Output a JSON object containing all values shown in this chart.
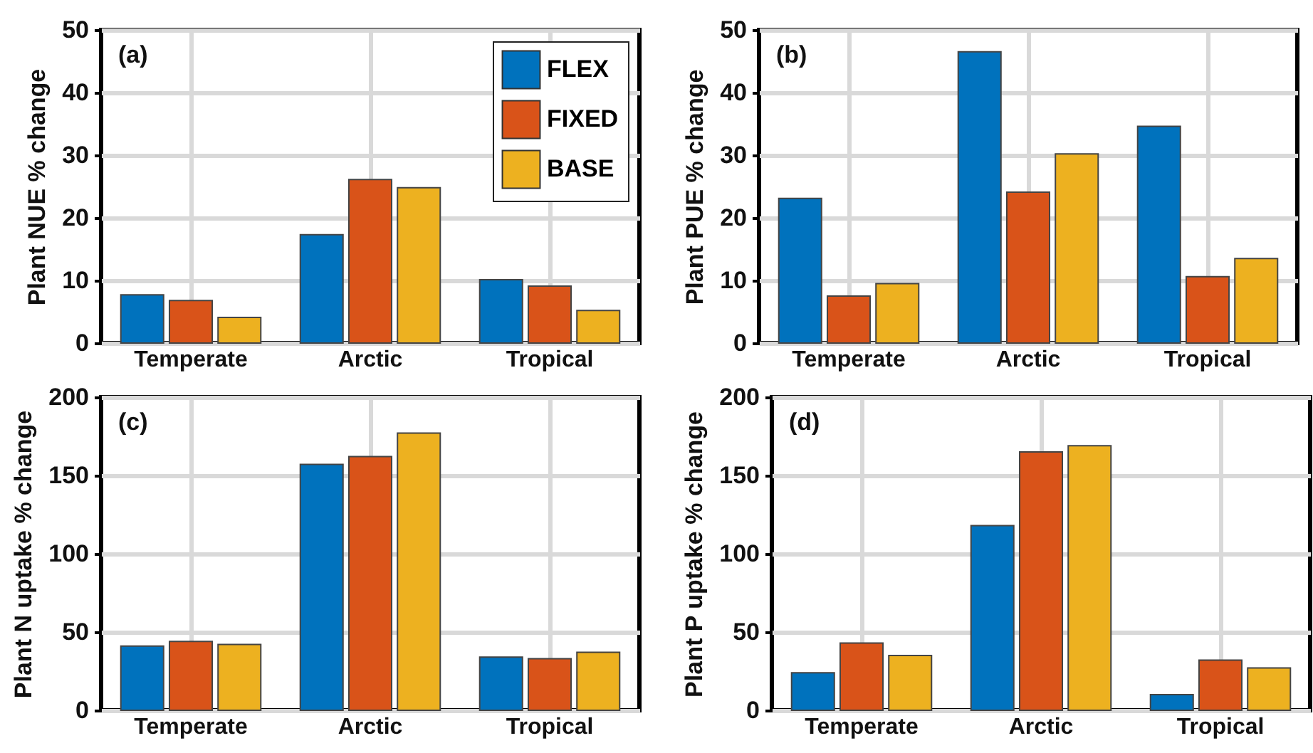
{
  "chart_data": [
    {
      "type": "bar",
      "annotations": [
        "(a)"
      ],
      "ylabel": "Plant NUE % change",
      "categories": [
        "Temperate",
        "Arctic",
        "Tropical"
      ],
      "series": [
        {
          "name": "FLEX",
          "color": "#0072bd",
          "values": [
            7.7,
            17.3,
            10.1
          ]
        },
        {
          "name": "FIXED",
          "color": "#d95319",
          "values": [
            6.8,
            26.1,
            9.1
          ]
        },
        {
          "name": "BASE",
          "color": "#edb120",
          "values": [
            4.1,
            24.8,
            5.2
          ]
        }
      ],
      "ylim": [
        0,
        50
      ],
      "yticks": [
        0,
        10,
        20,
        30,
        40,
        50
      ],
      "grid": true,
      "legend": "top right"
    },
    {
      "type": "bar",
      "annotations": [
        "(b)"
      ],
      "ylabel": "Plant PUE % change",
      "categories": [
        "Temperate",
        "Arctic",
        "Tropical"
      ],
      "series": [
        {
          "color": "#0072bd",
          "values": [
            23.1,
            46.5,
            34.6
          ]
        },
        {
          "color": "#d95319",
          "values": [
            7.5,
            24.1,
            10.6
          ]
        },
        {
          "color": "#edb120",
          "values": [
            9.5,
            30.2,
            13.5
          ]
        }
      ],
      "ylim": [
        0,
        50
      ],
      "yticks": [
        0,
        10,
        20,
        30,
        40,
        50
      ],
      "grid": true
    },
    {
      "type": "bar",
      "annotations": [
        "(c)"
      ],
      "ylabel": "Plant N uptake % change",
      "categories": [
        "Temperate",
        "Arctic",
        "Tropical"
      ],
      "series": [
        {
          "color": "#0072bd",
          "values": [
            41,
            157,
            34
          ]
        },
        {
          "color": "#d95319",
          "values": [
            44,
            162,
            33
          ]
        },
        {
          "color": "#edb120",
          "values": [
            42,
            177,
            37
          ]
        }
      ],
      "ylim": [
        0,
        200
      ],
      "yticks": [
        0,
        50,
        100,
        150,
        200
      ],
      "grid": true
    },
    {
      "type": "bar",
      "annotations": [
        "(d)"
      ],
      "ylabel": "Plant P uptake % change",
      "categories": [
        "Temperate",
        "Arctic",
        "Tropical"
      ],
      "series": [
        {
          "color": "#0072bd",
          "values": [
            24,
            118,
            10
          ]
        },
        {
          "color": "#d95319",
          "values": [
            43,
            165,
            32
          ]
        },
        {
          "color": "#edb120",
          "values": [
            35,
            169,
            27
          ]
        }
      ],
      "ylim": [
        0,
        200
      ],
      "yticks": [
        0,
        50,
        100,
        150,
        200
      ],
      "grid": true
    }
  ]
}
